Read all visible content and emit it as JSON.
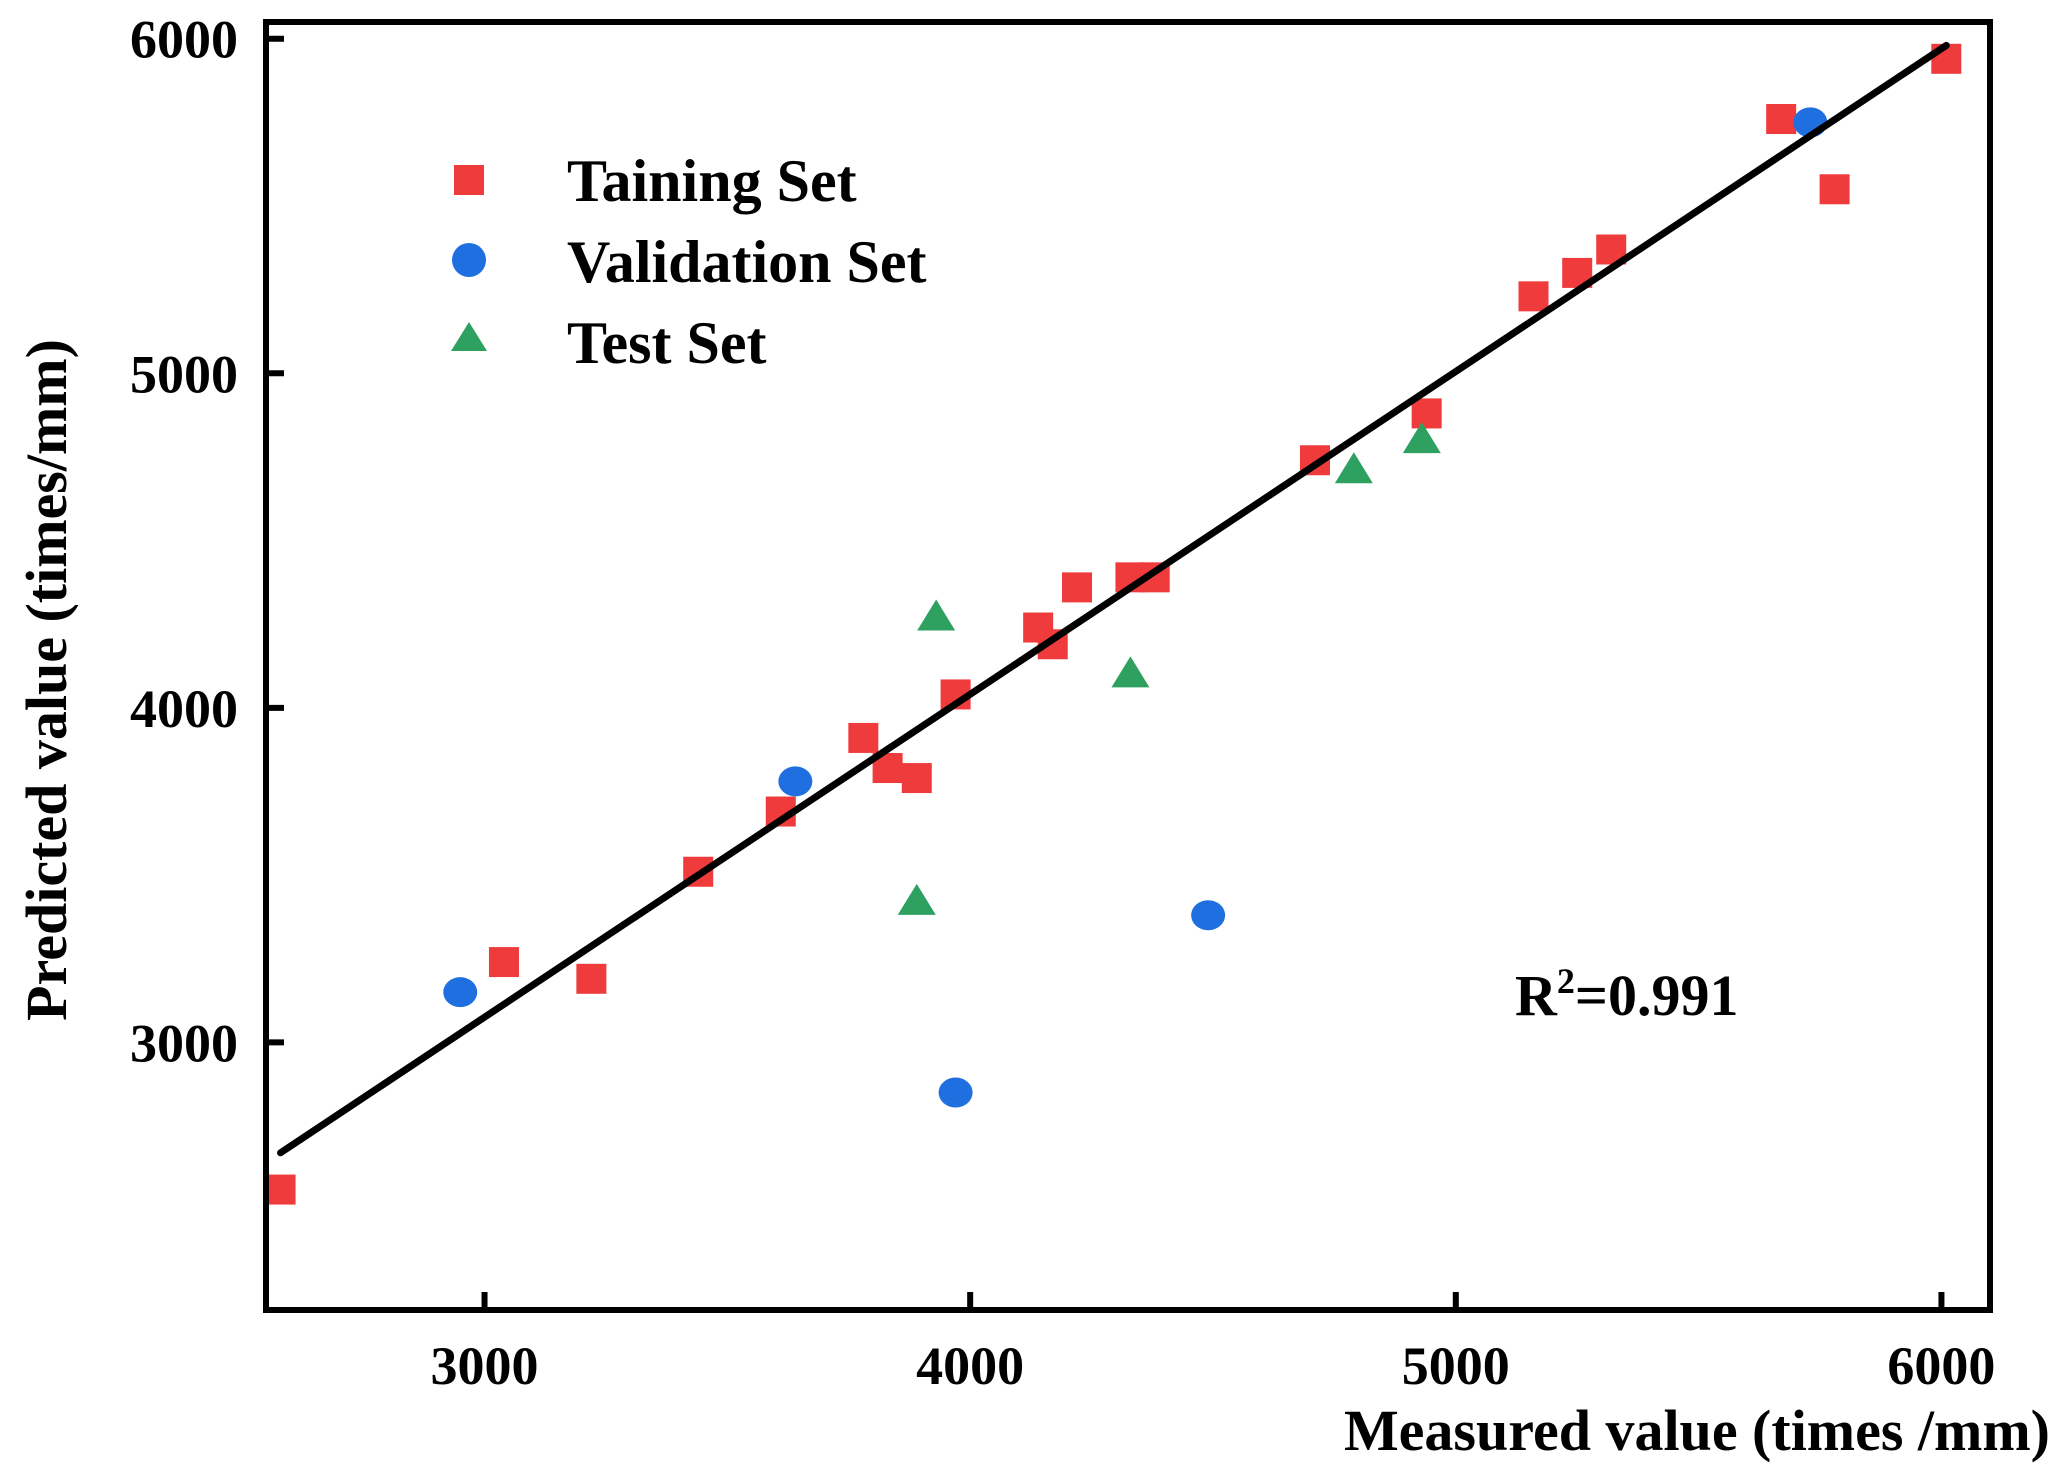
{
  "chart_data": {
    "type": "scatter",
    "title": "",
    "xlabel": "Measured value (times /mm)",
    "ylabel": "Predicted value (times/mm)",
    "xlim": [
      2550,
      6100
    ],
    "ylim": [
      2200,
      6050
    ],
    "xticks": [
      3000,
      4000,
      5000,
      6000
    ],
    "yticks": [
      3000,
      4000,
      5000,
      6000
    ],
    "xtick_labels": [
      "3000",
      "4000",
      "5000",
      "6000"
    ],
    "ytick_labels": [
      "3000",
      "4000",
      "5000",
      "6000"
    ],
    "grid": false,
    "legend_position": "top-left",
    "series": [
      {
        "name": "Taining Set",
        "marker": "square",
        "color": "#ef3b3b",
        "points": [
          [
            2580,
            2560
          ],
          [
            3040,
            3240
          ],
          [
            3220,
            3190
          ],
          [
            3440,
            3510
          ],
          [
            3610,
            3690
          ],
          [
            3780,
            3910
          ],
          [
            3830,
            3820
          ],
          [
            3890,
            3790
          ],
          [
            3970,
            4040
          ],
          [
            4140,
            4240
          ],
          [
            4170,
            4190
          ],
          [
            4220,
            4360
          ],
          [
            4330,
            4390
          ],
          [
            4380,
            4390
          ],
          [
            4710,
            4740
          ],
          [
            4940,
            4880
          ],
          [
            5160,
            5230
          ],
          [
            5250,
            5300
          ],
          [
            5320,
            5370
          ],
          [
            5670,
            5760
          ],
          [
            5780,
            5550
          ],
          [
            6010,
            5940
          ]
        ]
      },
      {
        "name": "Validation Set",
        "marker": "circle",
        "color": "#1f6fe0",
        "points": [
          [
            2950,
            3150
          ],
          [
            3640,
            3780
          ],
          [
            3970,
            2850
          ],
          [
            4490,
            3380
          ],
          [
            5730,
            5750
          ]
        ]
      },
      {
        "name": "Test Set",
        "marker": "triangle",
        "color": "#2ea060",
        "points": [
          [
            3890,
            3420
          ],
          [
            3930,
            4270
          ],
          [
            4330,
            4100
          ],
          [
            4790,
            4710
          ],
          [
            4930,
            4800
          ]
        ]
      }
    ],
    "fit_line": {
      "from": [
        2580,
        2670
      ],
      "to": [
        6010,
        5980
      ],
      "color": "#000000"
    },
    "annotations": [
      {
        "base": "R",
        "superscript": "2",
        "text": "=0.991"
      }
    ]
  }
}
